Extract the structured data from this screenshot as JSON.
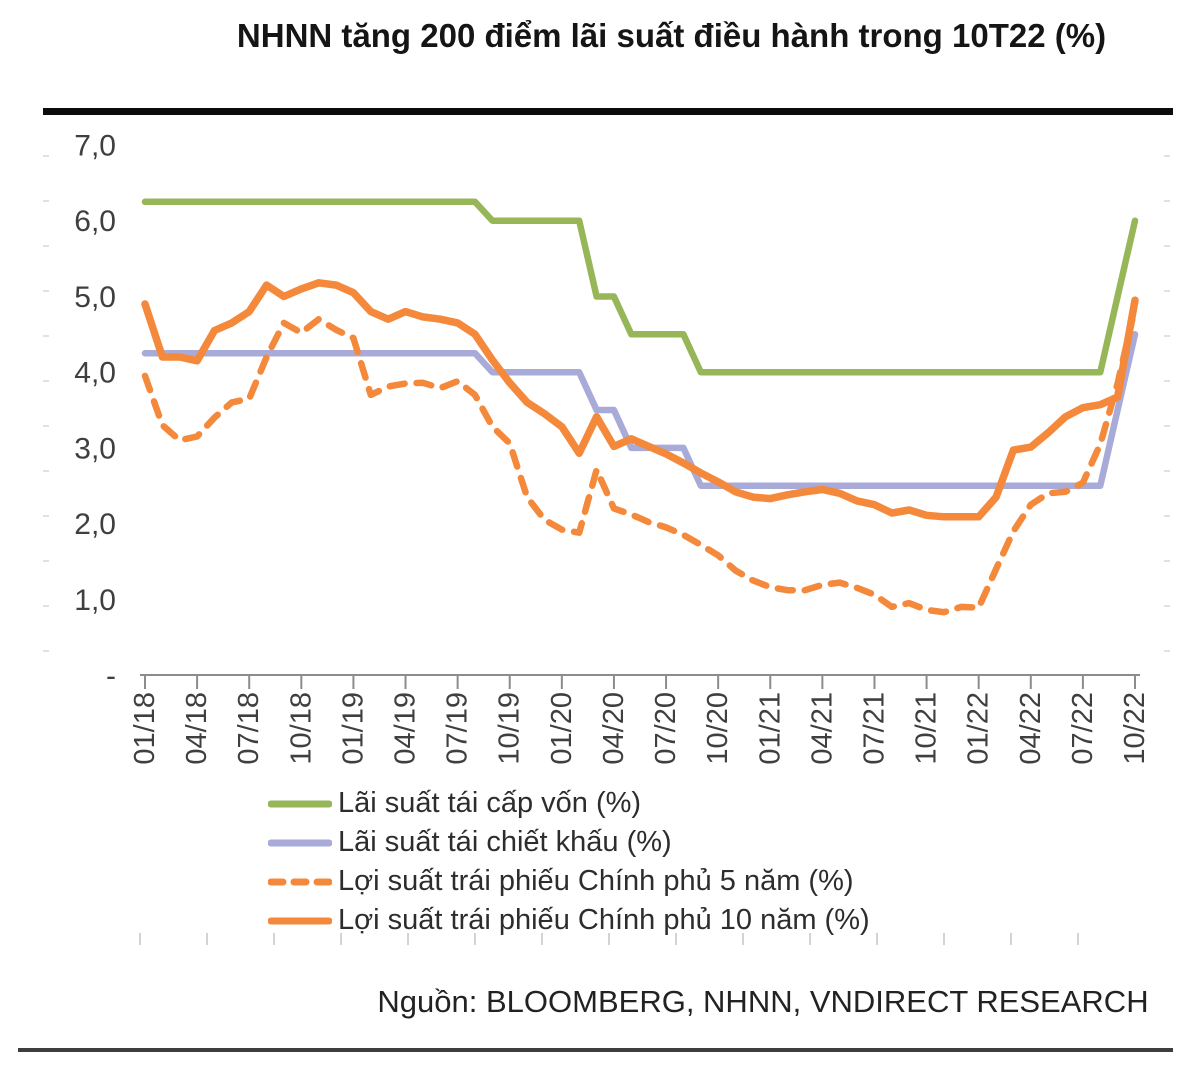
{
  "title": "NHNN tăng 200 điểm lãi suất điều hành trong 10T22 (%)",
  "source": "Nguồn: BLOOMBERG, NHNN, VNDIRECT RESEARCH",
  "colors": {
    "green": "#97b658",
    "purple": "#a8abd8",
    "orange": "#f4893c",
    "axis_text": "#3f3f3f",
    "axis_line": "#8c8c8c",
    "title_bar": "#0c0c0c",
    "bottom_rule": "#3e3e3e",
    "faint_tick": "#c9c9c9"
  },
  "legend": {
    "items": [
      {
        "key": "refinancing",
        "label": "Lãi suất tái cấp vốn (%)",
        "color": "#97b658",
        "dash": false
      },
      {
        "key": "discount",
        "label": "Lãi suất tái chiết khấu (%)",
        "color": "#a8abd8",
        "dash": false
      },
      {
        "key": "bond5y",
        "label": "Lợi suất trái phiếu Chính phủ 5 năm (%)",
        "color": "#f4893c",
        "dash": true
      },
      {
        "key": "bond10y",
        "label": "Lợi suất trái phiếu Chính phủ 10 năm (%)",
        "color": "#f4893c",
        "dash": false
      }
    ]
  },
  "chart_data": {
    "type": "line",
    "title": "NHNN tăng 200 điểm lãi suất điều hành trong 10T22 (%)",
    "x_unit": "month",
    "x_start": "01/2018",
    "x_end": "10/2022",
    "points_per_series": 58,
    "x_tick_labels": [
      "01/18",
      "04/18",
      "07/18",
      "10/18",
      "01/19",
      "04/19",
      "07/19",
      "10/19",
      "01/20",
      "04/20",
      "07/20",
      "10/20",
      "01/21",
      "04/21",
      "07/21",
      "10/21",
      "01/22",
      "04/22",
      "07/22",
      "10/22"
    ],
    "x_tick_month_step": 3,
    "ylim": [
      0,
      7
    ],
    "grid": false,
    "legend_position": "bottom",
    "y_ticks": [
      {
        "label": "7,0",
        "value": 7.0
      },
      {
        "label": "6,0",
        "value": 6.0
      },
      {
        "label": "5,0",
        "value": 5.0
      },
      {
        "label": "4,0",
        "value": 4.0
      },
      {
        "label": "3,0",
        "value": 3.0
      },
      {
        "label": "2,0",
        "value": 2.0
      },
      {
        "label": "1,0",
        "value": 1.0
      },
      {
        "label": "-",
        "value": 0.0
      }
    ],
    "series": [
      {
        "key": "refinancing",
        "name": "Lãi suất tái cấp vốn (%)",
        "color": "#97b658",
        "dash": false,
        "values": [
          6.25,
          6.25,
          6.25,
          6.25,
          6.25,
          6.25,
          6.25,
          6.25,
          6.25,
          6.25,
          6.25,
          6.25,
          6.25,
          6.25,
          6.25,
          6.25,
          6.25,
          6.25,
          6.25,
          6.25,
          6.0,
          6.0,
          6.0,
          6.0,
          6.0,
          6.0,
          5.0,
          5.0,
          4.5,
          4.5,
          4.5,
          4.5,
          4.0,
          4.0,
          4.0,
          4.0,
          4.0,
          4.0,
          4.0,
          4.0,
          4.0,
          4.0,
          4.0,
          4.0,
          4.0,
          4.0,
          4.0,
          4.0,
          4.0,
          4.0,
          4.0,
          4.0,
          4.0,
          4.0,
          4.0,
          4.0,
          5.0,
          6.0
        ]
      },
      {
        "key": "discount",
        "name": "Lãi suất tái chiết khấu (%)",
        "color": "#a8abd8",
        "dash": false,
        "values": [
          4.25,
          4.25,
          4.25,
          4.25,
          4.25,
          4.25,
          4.25,
          4.25,
          4.25,
          4.25,
          4.25,
          4.25,
          4.25,
          4.25,
          4.25,
          4.25,
          4.25,
          4.25,
          4.25,
          4.25,
          4.0,
          4.0,
          4.0,
          4.0,
          4.0,
          4.0,
          3.5,
          3.5,
          3.0,
          3.0,
          3.0,
          3.0,
          2.5,
          2.5,
          2.5,
          2.5,
          2.5,
          2.5,
          2.5,
          2.5,
          2.5,
          2.5,
          2.5,
          2.5,
          2.5,
          2.5,
          2.5,
          2.5,
          2.5,
          2.5,
          2.5,
          2.5,
          2.5,
          2.5,
          2.5,
          2.5,
          3.5,
          4.5
        ]
      },
      {
        "key": "bond10y",
        "name": "Lợi suất trái phiếu Chính phủ 10 năm (%)",
        "color": "#f4893c",
        "dash": false,
        "values": [
          4.9,
          4.2,
          4.2,
          4.15,
          4.55,
          4.65,
          4.8,
          5.15,
          5.0,
          5.1,
          5.18,
          5.15,
          5.05,
          4.8,
          4.7,
          4.8,
          4.73,
          4.7,
          4.65,
          4.5,
          4.16,
          3.86,
          3.6,
          3.45,
          3.28,
          2.93,
          3.41,
          3.02,
          3.12,
          3.02,
          2.92,
          2.8,
          2.67,
          2.55,
          2.42,
          2.35,
          2.33,
          2.38,
          2.42,
          2.45,
          2.4,
          2.3,
          2.25,
          2.14,
          2.18,
          2.11,
          2.09,
          2.09,
          2.09,
          2.35,
          2.97,
          3.01,
          3.2,
          3.41,
          3.53,
          3.57,
          3.67,
          4.95
        ]
      },
      {
        "key": "bond5y",
        "name": "Lợi suất trái phiếu Chính phủ 5 năm (%)",
        "color": "#f4893c",
        "dash": true,
        "values": [
          3.95,
          3.3,
          3.1,
          3.15,
          3.4,
          3.6,
          3.65,
          4.2,
          4.65,
          4.52,
          4.7,
          4.56,
          4.45,
          3.7,
          3.81,
          3.85,
          3.86,
          3.79,
          3.88,
          3.7,
          3.28,
          3.06,
          2.35,
          2.05,
          1.92,
          1.88,
          2.71,
          2.2,
          2.12,
          2.02,
          1.95,
          1.85,
          1.72,
          1.58,
          1.38,
          1.25,
          1.16,
          1.12,
          1.12,
          1.19,
          1.22,
          1.15,
          1.06,
          0.9,
          0.95,
          0.86,
          0.83,
          0.9,
          0.89,
          1.4,
          1.9,
          2.25,
          2.4,
          2.42,
          2.54,
          3.05,
          3.85,
          4.85
        ]
      }
    ]
  }
}
